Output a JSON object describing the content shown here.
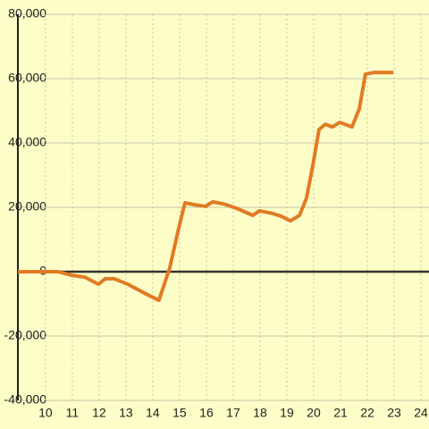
{
  "chart_data": {
    "type": "line",
    "x": [
      8.97,
      10.47,
      10.97,
      11.47,
      11.97,
      12.23,
      12.57,
      13.07,
      13.63,
      14.23,
      14.63,
      14.97,
      15.2,
      15.57,
      15.97,
      16.23,
      16.63,
      17.13,
      17.73,
      17.97,
      18.47,
      18.8,
      19.13,
      19.47,
      19.73,
      19.97,
      20.2,
      20.43,
      20.7,
      20.97,
      21.43,
      21.7,
      21.93,
      22.23,
      22.97
    ],
    "series": [
      {
        "color": "#e07b24",
        "values": [
          0,
          0,
          -1100,
          -1700,
          -3900,
          -2200,
          -2200,
          -3900,
          -6400,
          -8900,
          1100,
          13600,
          21400,
          20800,
          20300,
          21700,
          21100,
          19700,
          17500,
          18900,
          18100,
          17200,
          15800,
          17500,
          22800,
          33100,
          44200,
          45800,
          45000,
          46400,
          45000,
          50600,
          61400,
          61900,
          61900
        ]
      }
    ],
    "xlim": [
      8.97,
      24.3
    ],
    "xticks": [
      10,
      11,
      12,
      13,
      14,
      15,
      16,
      17,
      18,
      19,
      20,
      21,
      22,
      23,
      24
    ],
    "ylim": [
      -40000,
      80000
    ],
    "yticks": [
      {
        "value": -40000,
        "label": "-40,000"
      },
      {
        "value": -20000,
        "label": "-20,000"
      },
      0,
      {
        "value": 20000,
        "label": "20,000"
      },
      {
        "value": 40000,
        "label": "40,000"
      },
      {
        "value": 60000,
        "label": "60,000"
      },
      {
        "value": 80000,
        "label": "80,000"
      }
    ],
    "grid": true
  }
}
